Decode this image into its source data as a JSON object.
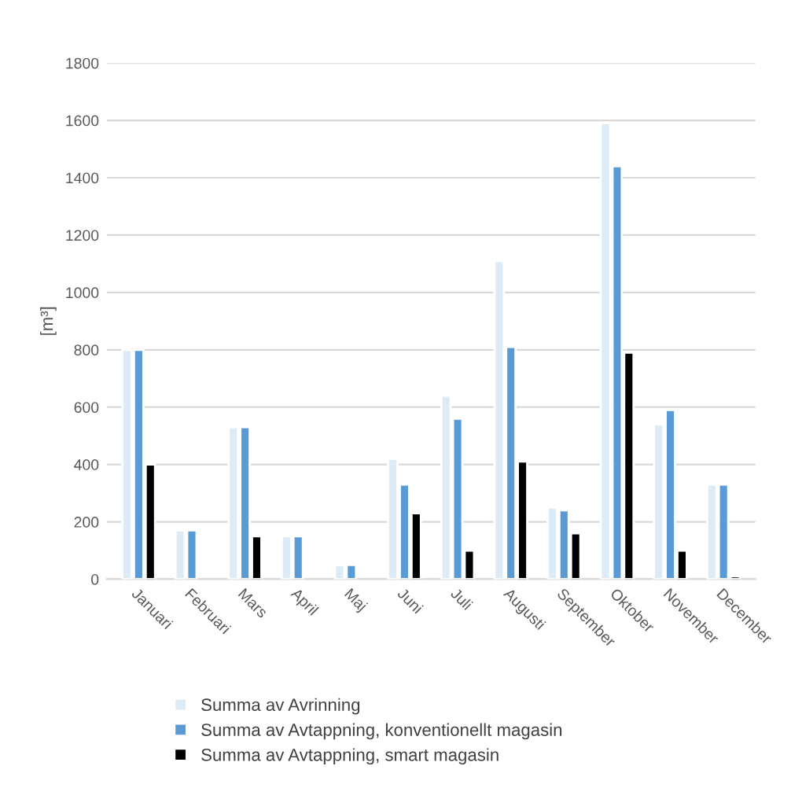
{
  "chart_data": {
    "type": "bar",
    "ylabel": "[m³]",
    "categories": [
      "Januari",
      "Februari",
      "Mars",
      "April",
      "Maj",
      "Juni",
      "Juli",
      "Augusti",
      "September",
      "Oktober",
      "November",
      "December"
    ],
    "series": [
      {
        "name": "Summa av Avrinning",
        "color": "#ddebf7",
        "values": [
          800,
          170,
          530,
          150,
          50,
          420,
          640,
          1110,
          250,
          1590,
          540,
          330
        ]
      },
      {
        "name": "Summa av Avtappning, konventionellt magasin",
        "color": "#5b9bd5",
        "values": [
          800,
          170,
          530,
          150,
          50,
          330,
          560,
          810,
          240,
          1440,
          590,
          330
        ]
      },
      {
        "name": "Summa av Avtappning, smart magasin",
        "color": "#000000",
        "values": [
          400,
          null,
          150,
          null,
          null,
          230,
          100,
          410,
          160,
          790,
          100,
          10
        ]
      }
    ],
    "ylim": [
      0,
      1800
    ],
    "yticks": [
      0,
      200,
      400,
      600,
      800,
      1000,
      1200,
      1400,
      1600,
      1800
    ],
    "grid": "y",
    "legend": "bottom"
  }
}
